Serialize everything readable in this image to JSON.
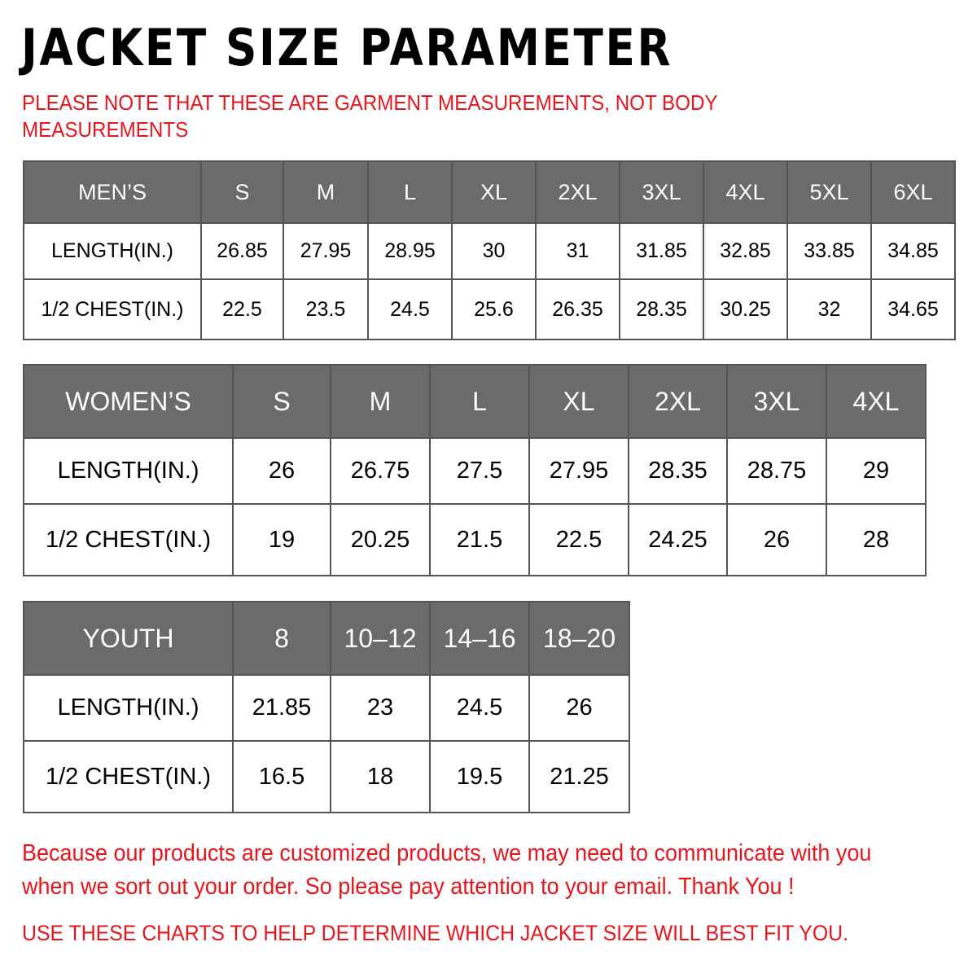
{
  "title": "JACKET SIZE PARAMETER",
  "note_line1": "PLEASE NOTE THAT THESE ARE GARMENT MEASUREMENTS, NOT BODY",
  "note_line2": "MEASUREMENTS",
  "colors": {
    "header_bg": "#6b6b6b",
    "accent_red": "#e8141c"
  },
  "mens": {
    "headers": [
      "MEN’S",
      "S",
      "M",
      "L",
      "XL",
      "2XL",
      "3XL",
      "4XL",
      "5XL",
      "6XL"
    ],
    "rows": [
      [
        "LENGTH(IN.)",
        "26.85",
        "27.95",
        "28.95",
        "30",
        "31",
        "31.85",
        "32.85",
        "33.85",
        "34.85"
      ],
      [
        "1/2 CHEST(IN.)",
        "22.5",
        "23.5",
        "24.5",
        "25.6",
        "26.35",
        "28.35",
        "30.25",
        "32",
        "34.65"
      ]
    ]
  },
  "womens": {
    "headers": [
      "WOMEN’S",
      "S",
      "M",
      "L",
      "XL",
      "2XL",
      "3XL",
      "4XL"
    ],
    "rows": [
      [
        "LENGTH(IN.)",
        "26",
        "26.75",
        "27.5",
        "27.95",
        "28.35",
        "28.75",
        "29"
      ],
      [
        "1/2 CHEST(IN.)",
        "19",
        "20.25",
        "21.5",
        "22.5",
        "24.25",
        "26",
        "28"
      ]
    ]
  },
  "youth": {
    "headers": [
      "YOUTH",
      "8",
      "10–12",
      "14–16",
      "18–20"
    ],
    "rows": [
      [
        "LENGTH(IN.)",
        "21.85",
        "23",
        "24.5",
        "26"
      ],
      [
        "1/2 CHEST(IN.)",
        "16.5",
        "18",
        "19.5",
        "21.25"
      ]
    ]
  },
  "message_line1": "Because our products are customized products, we may need to communicate with you",
  "message_line2": "when we sort out your order. So please pay attention to your email. Thank You !",
  "footer": "USE THESE CHARTS TO HELP DETERMINE WHICH JACKET SIZE WILL BEST FIT YOU."
}
